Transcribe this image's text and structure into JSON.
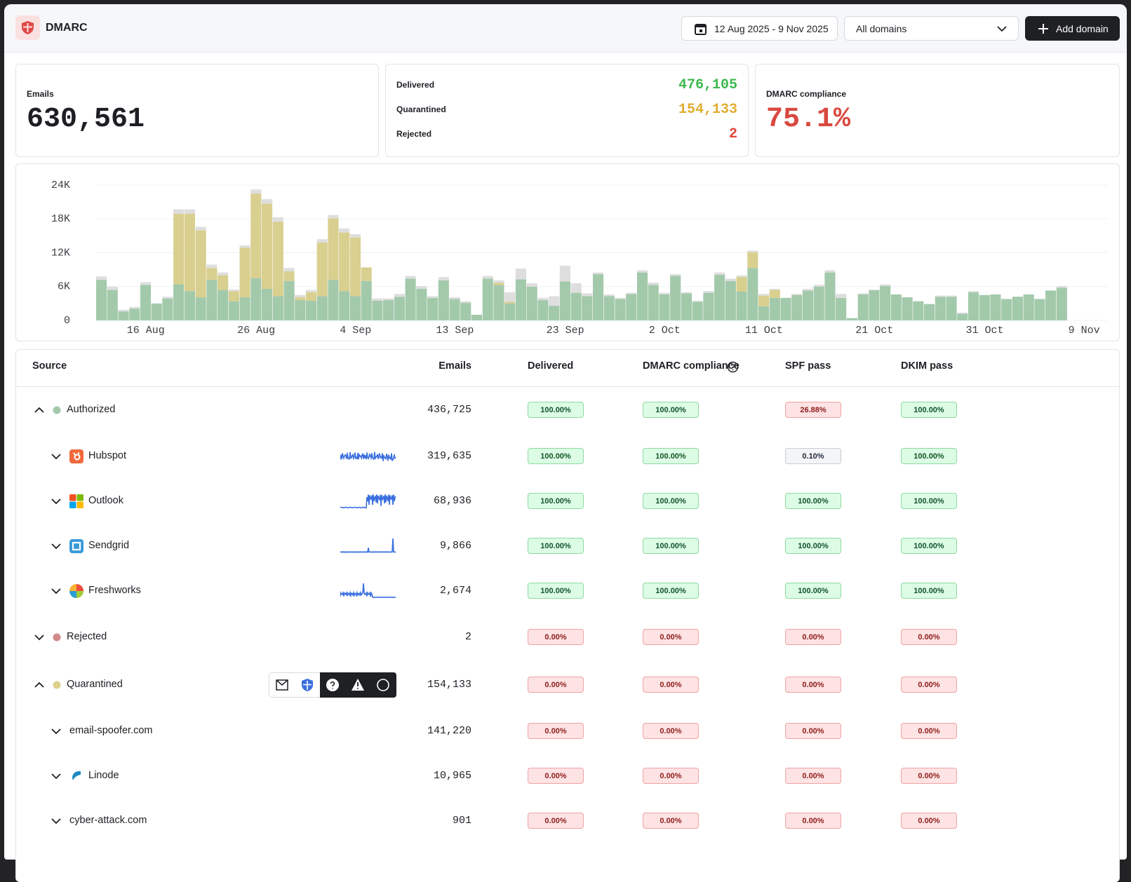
{
  "header": {
    "title": "DMARC",
    "date_range": "12 Aug 2025 - 9 Nov 2025",
    "domain_filter": "All domains",
    "button": "Add domain"
  },
  "stats": {
    "emails": {
      "label": "Emails",
      "value": "630,561"
    },
    "outcomes": [
      {
        "label": "Delivered",
        "value": "476,105",
        "color": "#3fb950"
      },
      {
        "label": "Quarantined",
        "value": "154,133",
        "color": "#e0ad2e"
      },
      {
        "label": "Rejected",
        "value": "2",
        "color": "#e0463c"
      }
    ],
    "compliance": {
      "label": "DMARC compliance",
      "value": "75.1%",
      "color": "#d9483f"
    }
  },
  "chart_data": {
    "type": "bar",
    "stacked": true,
    "grid": true,
    "categories": [
      null,
      null,
      null,
      null,
      "16 Aug",
      null,
      null,
      null,
      null,
      null,
      null,
      null,
      null,
      null,
      "26 Aug",
      null,
      null,
      null,
      null,
      null,
      null,
      null,
      null,
      "4 Sep",
      null,
      null,
      null,
      null,
      null,
      null,
      null,
      null,
      "13 Sep",
      null,
      null,
      null,
      null,
      null,
      null,
      null,
      null,
      null,
      "23 Sep",
      null,
      null,
      null,
      null,
      null,
      null,
      null,
      null,
      "2 Oct",
      null,
      null,
      null,
      null,
      null,
      null,
      null,
      null,
      "11 Oct",
      null,
      null,
      null,
      null,
      null,
      null,
      null,
      null,
      null,
      "21 Oct",
      null,
      null,
      null,
      null,
      null,
      null,
      null,
      null,
      null,
      "31 Oct",
      null,
      null,
      null,
      null,
      null,
      null,
      null,
      null,
      "9 Nov"
    ],
    "series": [
      {
        "color": "#a3c9ab",
        "values": [
          7200,
          5400,
          1600,
          2100,
          6300,
          3000,
          3900,
          6400,
          5200,
          4100,
          7200,
          5400,
          3400,
          4100,
          7500,
          5600,
          4300,
          7000,
          3600,
          3500,
          4300,
          7200,
          5200,
          4300,
          7000,
          3500,
          3600,
          4200,
          7400,
          5600,
          4000,
          7100,
          3800,
          3100,
          1000,
          7400,
          6300,
          3000,
          7300,
          6000,
          3600,
          2600,
          6900,
          4900,
          4300,
          8200,
          4300,
          3800,
          4700,
          8500,
          6300,
          4600,
          7900,
          4800,
          3300,
          4900,
          8100,
          7000,
          5100,
          9300,
          2500,
          4000,
          4000,
          4500,
          5300,
          6000,
          8500,
          4000,
          400,
          4600,
          5400,
          6100,
          4600,
          4100,
          3400,
          2900,
          4200,
          4200,
          1200,
          5000,
          4500,
          4600,
          3800,
          4200,
          4600,
          3800,
          5300,
          5800,
          null,
          null
        ]
      },
      {
        "color": "#d9cf8f",
        "values": [
          0,
          0,
          0,
          0,
          0,
          0,
          0,
          12500,
          13700,
          11900,
          2100,
          2600,
          1800,
          8800,
          15000,
          15100,
          13200,
          1700,
          500,
          1500,
          9500,
          10900,
          10400,
          10400,
          2400,
          0,
          0,
          0,
          0,
          0,
          0,
          0,
          0,
          0,
          0,
          0,
          400,
          300,
          0,
          0,
          0,
          0,
          0,
          0,
          0,
          0,
          0,
          0,
          0,
          0,
          0,
          0,
          0,
          0,
          0,
          0,
          0,
          0,
          2600,
          2800,
          1900,
          1400,
          0,
          0,
          0,
          0,
          0,
          0,
          0,
          0,
          0,
          0,
          0,
          0,
          0,
          0,
          0,
          0,
          0,
          0,
          0,
          0,
          0,
          0,
          0,
          0,
          0,
          0,
          null,
          null
        ]
      },
      {
        "color": "#dedede",
        "values": [
          600,
          600,
          300,
          300,
          500,
          0,
          300,
          800,
          800,
          600,
          600,
          500,
          300,
          400,
          700,
          800,
          800,
          600,
          400,
          400,
          600,
          600,
          700,
          600,
          0,
          400,
          300,
          500,
          500,
          500,
          300,
          600,
          300,
          300,
          0,
          500,
          400,
          1700,
          1900,
          600,
          400,
          1700,
          2800,
          1700,
          500,
          300,
          300,
          200,
          200,
          400,
          400,
          300,
          300,
          200,
          200,
          300,
          400,
          400,
          300,
          300,
          300,
          200,
          0,
          200,
          300,
          300,
          400,
          700,
          0,
          200,
          0,
          300,
          0,
          0,
          0,
          0,
          200,
          200,
          200,
          200,
          0,
          0,
          0,
          0,
          0,
          0,
          0,
          300,
          null,
          null
        ]
      }
    ],
    "ylim": [
      0,
      24000
    ],
    "yticks": [
      0,
      {
        "value": 6000,
        "label": "6K"
      },
      {
        "value": 12000,
        "label": "12K"
      },
      {
        "value": 18000,
        "label": "18K"
      },
      {
        "value": 24000,
        "label": "24K"
      }
    ]
  },
  "table": {
    "columns": [
      "Source",
      "Emails",
      "Delivered",
      "DMARC compliance",
      "SPF pass",
      "DKIM pass"
    ],
    "rows": [
      {
        "source": "Authorized",
        "level": 0,
        "expanded": true,
        "dot": "#a3c9ab",
        "emails": "436,725",
        "cells": [
          {
            "text": "100.00%",
            "tone": "ok"
          },
          {
            "text": "100.00%",
            "tone": "ok"
          },
          {
            "text": "26.88%",
            "tone": "fail"
          },
          {
            "text": "100.00%",
            "tone": "ok"
          }
        ]
      },
      {
        "source": "Hubspot",
        "level": 1,
        "expanded": false,
        "emails": "319,635",
        "cells": [
          {
            "text": "100.00%",
            "tone": "ok"
          },
          {
            "text": "100.00%",
            "tone": "ok"
          },
          {
            "text": "0.10%",
            "tone": "neutral"
          },
          {
            "text": "100.00%",
            "tone": "ok"
          }
        ]
      },
      {
        "source": "Outlook",
        "level": 1,
        "expanded": false,
        "emails": "68,936",
        "cells": [
          {
            "text": "100.00%",
            "tone": "ok"
          },
          {
            "text": "100.00%",
            "tone": "ok"
          },
          {
            "text": "100.00%",
            "tone": "ok"
          },
          {
            "text": "100.00%",
            "tone": "ok"
          }
        ]
      },
      {
        "source": "Sendgrid",
        "level": 1,
        "expanded": false,
        "emails": "9,866",
        "cells": [
          {
            "text": "100.00%",
            "tone": "ok"
          },
          {
            "text": "100.00%",
            "tone": "ok"
          },
          {
            "text": "100.00%",
            "tone": "ok"
          },
          {
            "text": "100.00%",
            "tone": "ok"
          }
        ]
      },
      {
        "source": "Freshworks",
        "level": 1,
        "expanded": false,
        "emails": "2,674",
        "cells": [
          {
            "text": "100.00%",
            "tone": "ok"
          },
          {
            "text": "100.00%",
            "tone": "ok"
          },
          {
            "text": "100.00%",
            "tone": "ok"
          },
          {
            "text": "100.00%",
            "tone": "ok"
          }
        ]
      },
      {
        "source": "Rejected",
        "level": 0,
        "expanded": false,
        "dot": "#d28a8a",
        "emails": "2",
        "cells": [
          {
            "text": "0.00%",
            "tone": "fail"
          },
          {
            "text": "0.00%",
            "tone": "fail"
          },
          {
            "text": "0.00%",
            "tone": "fail"
          },
          {
            "text": "0.00%",
            "tone": "fail"
          }
        ]
      },
      {
        "source": "Quarantined",
        "level": 0,
        "expanded": true,
        "dot": "#ddd08a",
        "emails": "154,133",
        "cells": [
          {
            "text": "0.00%",
            "tone": "fail"
          },
          {
            "text": "0.00%",
            "tone": "fail"
          },
          {
            "text": "0.00%",
            "tone": "fail"
          },
          {
            "text": "0.00%",
            "tone": "fail"
          }
        ]
      },
      {
        "source": "email-spoofer.com",
        "level": 1,
        "expanded": false,
        "emails": "141,220",
        "cells": [
          {
            "text": "0.00%",
            "tone": "fail"
          },
          {
            "text": "0.00%",
            "tone": "fail"
          },
          {
            "text": "0.00%",
            "tone": "fail"
          },
          {
            "text": "0.00%",
            "tone": "fail"
          }
        ]
      },
      {
        "source": "Linode",
        "level": 1,
        "expanded": false,
        "emails": "10,965",
        "cells": [
          {
            "text": "0.00%",
            "tone": "fail"
          },
          {
            "text": "0.00%",
            "tone": "fail"
          },
          {
            "text": "0.00%",
            "tone": "fail"
          },
          {
            "text": "0.00%",
            "tone": "fail"
          }
        ]
      },
      {
        "source": "cyber-attack.com",
        "level": 1,
        "expanded": false,
        "emails": "901",
        "cells": [
          {
            "text": "0.00%",
            "tone": "fail"
          },
          {
            "text": "0.00%",
            "tone": "fail"
          },
          {
            "text": "0.00%",
            "tone": "fail"
          },
          {
            "text": "0.00%",
            "tone": "fail"
          }
        ]
      }
    ]
  }
}
